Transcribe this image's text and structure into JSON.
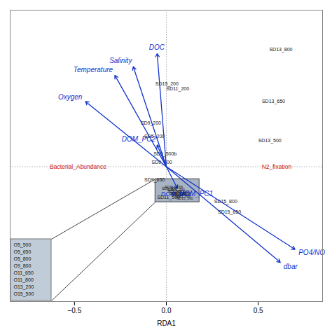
{
  "chart_data": {
    "type": "biplot",
    "xlabel": "RDA1",
    "xlim": [
      -0.85,
      0.85
    ],
    "ylim": [
      -0.62,
      0.72
    ],
    "xticks": [
      -0.5,
      {
        "value": 0,
        "label": "0.0"
      },
      0.5
    ],
    "yticks": [],
    "tick_labels": "x",
    "grid": false,
    "arrows": {
      "color": "#1133cc",
      "labels": [
        "DOC",
        "Salinity",
        "Temperature",
        "Oxygen",
        "DOM_PC2",
        "DOM_PC1",
        "PO4/NO",
        "dbar"
      ],
      "x": [
        -0.05,
        -0.18,
        -0.28,
        -0.44,
        -0.05,
        0.06,
        0.7,
        0.62
      ],
      "y": [
        0.52,
        0.46,
        0.42,
        0.3,
        0.1,
        -0.1,
        -0.38,
        -0.44
      ]
    },
    "sample_points": {
      "labels": [
        "SD13_800",
        "SD13_650",
        "SD13_500",
        "SD15_800",
        "SD15_650",
        "SD11_500",
        "SD9_650",
        "SD9_500",
        "SD9_200",
        "SD5_200",
        "SD15_200",
        "SD11_200",
        "SD9_500b"
      ],
      "x": [
        0.56,
        0.52,
        0.5,
        0.26,
        0.28,
        -0.05,
        -0.12,
        -0.08,
        -0.14,
        -0.12,
        -0.06,
        0.0,
        -0.07
      ],
      "y": [
        0.54,
        0.3,
        0.12,
        -0.16,
        -0.21,
        -0.14,
        -0.06,
        0.02,
        0.2,
        0.14,
        0.38,
        0.36,
        0.06
      ]
    },
    "clustered_points": {
      "box_label": "DOM_PC1",
      "labels": [
        "SD5_500",
        "SD5_650",
        "SD5_800",
        "SD9_800",
        "SD11_650",
        "SD11_800",
        "SD13_200",
        "SD15_500",
        "SD13_650b",
        "SD15_200b"
      ],
      "x": [
        -0.025,
        0.005,
        0.02,
        0.03,
        0.035,
        0.045,
        0.01,
        0.055,
        0.025,
        -0.01
      ],
      "y": [
        -0.1,
        -0.115,
        -0.125,
        -0.13,
        -0.118,
        -0.138,
        -0.108,
        -0.145,
        -0.122,
        -0.095
      ]
    },
    "annotations": [
      {
        "text": "Bacterial_Abundance",
        "x": -0.48,
        "y": 0.0,
        "color": "#cc2222"
      },
      {
        "text": "N2_fixation",
        "x": 0.6,
        "y": 0.0,
        "color": "#cc2222"
      }
    ],
    "legend_items": [
      "O5_500",
      "O5_650",
      "O5_800",
      "O9_800",
      "O11_650",
      "O11_800",
      "O13_200",
      "O15_500"
    ]
  }
}
